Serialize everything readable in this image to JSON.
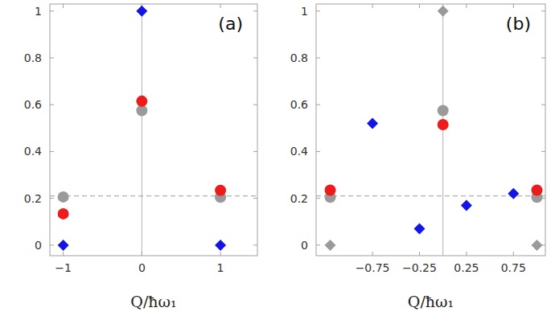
{
  "chart_data": [
    {
      "type": "scatter",
      "annotation": "(a)",
      "x_label": "Q/ħω₁",
      "xlim": [
        -1.17,
        1.47
      ],
      "ylim": [
        -0.045,
        1.03
      ],
      "xticks": [
        {
          "value": -1,
          "label": "−1"
        },
        0,
        1
      ],
      "yticks": [
        0,
        0.2,
        0.4,
        0.6,
        0.8,
        1
      ],
      "hline": 0.21,
      "vline": 0,
      "series": [
        {
          "color": "#9a9a9a",
          "marker": "circle",
          "x": [
            -1,
            0,
            1
          ],
          "values": [
            0.206,
            0.575,
            0.205
          ]
        },
        {
          "color": "#ee1b1b",
          "marker": "circle",
          "x": [
            -1,
            0,
            1
          ],
          "values": [
            0.134,
            0.615,
            0.234
          ]
        },
        {
          "color": "#1414e6",
          "marker": "diamond",
          "x": [
            -1,
            0,
            1
          ],
          "values": [
            0,
            1,
            0
          ]
        }
      ]
    },
    {
      "type": "scatter",
      "annotation": "(b)",
      "x_label": "Q/ħω₁",
      "xlim": [
        -1.35,
        1.09
      ],
      "ylim": [
        -0.045,
        1.03
      ],
      "xticks": [
        {
          "value": -0.75,
          "label": "−0.75"
        },
        {
          "value": -0.25,
          "label": "−0.25"
        },
        0.25,
        0.75
      ],
      "yticks": [
        0,
        0.2,
        0.4,
        0.6,
        0.8,
        1
      ],
      "hline": 0.21,
      "vline": 0,
      "series": [
        {
          "color": "#9a9a9a",
          "marker": "diamond",
          "x": [
            -1.2,
            0,
            1.0
          ],
          "values": [
            0,
            1,
            0
          ]
        },
        {
          "color": "#9a9a9a",
          "marker": "circle",
          "x": [
            -1.2,
            0,
            1.0
          ],
          "values": [
            0.205,
            0.575,
            0.205
          ]
        },
        {
          "color": "#ee1b1b",
          "marker": "circle",
          "x": [
            -1.2,
            0,
            1.0
          ],
          "values": [
            0.235,
            0.515,
            0.235
          ]
        },
        {
          "color": "#1414e6",
          "marker": "diamond",
          "x": [
            -0.75,
            -0.25,
            0.25,
            0.75
          ],
          "values": [
            0.52,
            0.07,
            0.17,
            0.22
          ]
        }
      ]
    }
  ]
}
